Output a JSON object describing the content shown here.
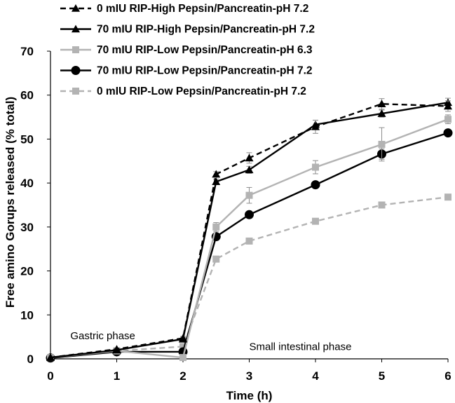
{
  "chart_data": {
    "type": "line",
    "title": "",
    "xlabel": "Time (h)",
    "ylabel": "Free amino Gorups released (% total)",
    "xlim": [
      0,
      6
    ],
    "ylim": [
      0,
      70
    ],
    "xticks": [
      0,
      1,
      2,
      3,
      4,
      5,
      6
    ],
    "yticks": [
      0,
      10,
      20,
      30,
      40,
      50,
      60,
      70
    ],
    "grid": false,
    "legend_position": "top-left",
    "annotations": [
      {
        "text": "Gastric phase",
        "x": 0.3,
        "y": 4.5
      },
      {
        "text": "Small  intestinal phase",
        "x": 3.0,
        "y": 2.0
      }
    ],
    "series": [
      {
        "name": "0 mIU RIP-High Pepsin/Pancreatin-pH 7.2",
        "color": "#000000",
        "dash": "dashed",
        "marker": "triangle",
        "x": [
          0,
          1,
          2,
          2.5,
          3,
          4,
          5,
          6
        ],
        "y": [
          0.3,
          2.2,
          4.7,
          42.0,
          45.7,
          52.8,
          58.0,
          57.5
        ],
        "err": [
          0.5,
          0.3,
          0.4,
          0.6,
          1.2,
          1.5,
          1.2,
          1.2
        ]
      },
      {
        "name": "70 mIU RIP-High Pepsin/Pancreatin-pH 7.2",
        "color": "#000000",
        "dash": "solid",
        "marker": "triangle",
        "x": [
          0,
          1,
          2,
          2.5,
          3,
          4,
          5,
          6
        ],
        "y": [
          0.3,
          2.0,
          4.5,
          40.3,
          43.0,
          53.3,
          55.8,
          58.3
        ],
        "err": [
          0.5,
          0.3,
          0.4,
          0.6,
          0.8,
          1.0,
          0.8,
          1.0
        ]
      },
      {
        "name": "70 mIU RIP-Low Pepsin/Pancreatin-pH 6.3",
        "color": "#b3b3b3",
        "dash": "solid",
        "marker": "square",
        "x": [
          0,
          1,
          2,
          2.5,
          3,
          4,
          5,
          6
        ],
        "y": [
          0.3,
          1.8,
          0.3,
          30.0,
          37.2,
          43.6,
          48.8,
          54.5
        ],
        "err": [
          0.5,
          0.3,
          0.3,
          1.0,
          1.8,
          1.5,
          3.8,
          1.0
        ]
      },
      {
        "name": "70 mIU RIP-Low Pepsin/Pancreatin-pH 7.2",
        "color": "#000000",
        "dash": "solid",
        "marker": "circle",
        "x": [
          0,
          1,
          2,
          2.5,
          3,
          4,
          5,
          6
        ],
        "y": [
          0.2,
          1.6,
          1.6,
          27.8,
          32.8,
          39.6,
          46.6,
          51.4
        ],
        "err": [
          0.5,
          0.3,
          0.3,
          0.5,
          0.5,
          0.5,
          1.2,
          0.7
        ]
      },
      {
        "name": "0 mIU RIP-Low Pepsin/Pancreatin-pH 7.2",
        "color": "#b3b3b3",
        "dash": "dashed",
        "marker": "square",
        "x": [
          0,
          1,
          2,
          2.5,
          3,
          4,
          5,
          6
        ],
        "y": [
          0.2,
          1.8,
          2.8,
          22.7,
          26.8,
          31.3,
          35.0,
          36.8
        ],
        "err": [
          0.4,
          0.3,
          0.3,
          0.5,
          0.5,
          0.5,
          0.6,
          0.4
        ]
      }
    ]
  }
}
